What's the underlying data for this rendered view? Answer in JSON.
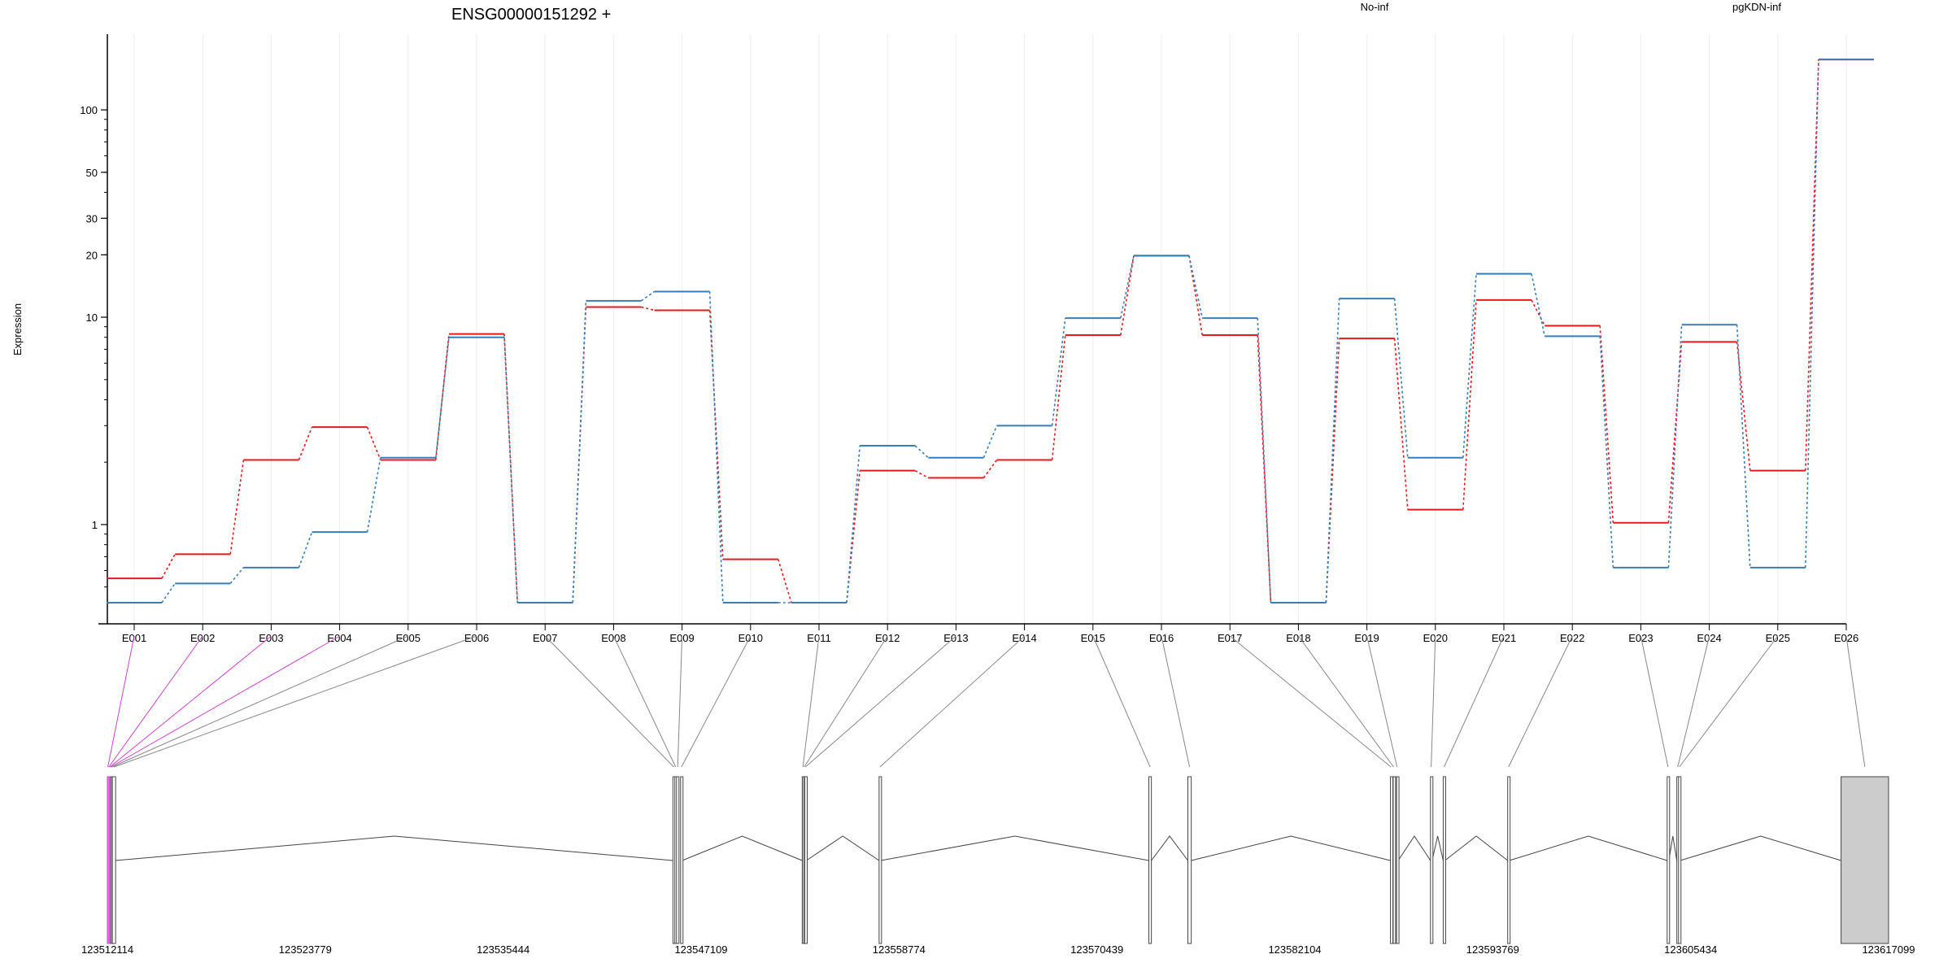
{
  "chart_data": {
    "type": "line",
    "title": "ENSG00000151292 +",
    "ylabel": "Expression",
    "xlabel": "",
    "yscale": "log",
    "yticks": [
      1,
      10,
      20,
      30,
      50,
      100
    ],
    "grid": "vertical-light",
    "legend_placement": "top-right",
    "categories": [
      "E001",
      "E002",
      "E003",
      "E004",
      "E005",
      "E006",
      "E007",
      "E008",
      "E009",
      "E010",
      "E011",
      "E012",
      "E013",
      "E014",
      "E015",
      "E016",
      "E017",
      "E018",
      "E019",
      "E020",
      "E021",
      "E022",
      "E023",
      "E024",
      "E025",
      "E026"
    ],
    "series": [
      {
        "name": "No-inf",
        "color": "#e41a1c",
        "style": "solid",
        "values": [
          0.55,
          0.72,
          2.05,
          2.95,
          2.05,
          8.3,
          0.42,
          11.2,
          10.8,
          0.68,
          0.42,
          1.82,
          1.68,
          2.05,
          8.2,
          19.8,
          8.2,
          0.42,
          7.9,
          1.18,
          12.1,
          9.1,
          1.02,
          7.6,
          1.82,
          175
        ]
      },
      {
        "name": "pgKDN-inf",
        "color": "#377eb8",
        "style": "dashed",
        "values": [
          0.42,
          0.52,
          0.62,
          0.92,
          2.1,
          8.0,
          0.42,
          12.0,
          13.3,
          0.42,
          0.42,
          2.4,
          2.1,
          3.0,
          9.9,
          19.8,
          9.9,
          0.42,
          12.3,
          2.1,
          16.2,
          8.1,
          0.62,
          9.2,
          0.62,
          175
        ]
      }
    ],
    "genomic_axis": {
      "tick_labels": [
        "123512114",
        "123523779",
        "123535444",
        "123547109",
        "123558774",
        "123570439",
        "123582104",
        "123593769",
        "123605434",
        "123617099"
      ],
      "tick_positions": [
        123512114,
        123523779,
        123535444,
        123547109,
        123558774,
        123570439,
        123582104,
        123593769,
        123605434,
        123617099
      ],
      "range": [
        123512114,
        123617099
      ]
    },
    "exons": [
      {
        "id": "E001",
        "start": 123512114,
        "end": 123512170,
        "highlight": true
      },
      {
        "id": "E002",
        "start": 123512170,
        "end": 123512230,
        "highlight": true
      },
      {
        "id": "E003",
        "start": 123512230,
        "end": 123512290,
        "highlight": true
      },
      {
        "id": "E004",
        "start": 123512290,
        "end": 123512340,
        "highlight": true
      },
      {
        "id": "E005",
        "start": 123512340,
        "end": 123512410,
        "highlight": false
      },
      {
        "id": "E006",
        "start": 123512410,
        "end": 123512600,
        "highlight": false
      },
      {
        "id": "E007",
        "start": 123545450,
        "end": 123545560,
        "highlight": false
      },
      {
        "id": "E008",
        "start": 123545560,
        "end": 123545660,
        "highlight": false
      },
      {
        "id": "E009",
        "start": 123545660,
        "end": 123545800,
        "highlight": false
      },
      {
        "id": "E010",
        "start": 123545900,
        "end": 123546000,
        "highlight": false
      },
      {
        "id": "E011",
        "start": 123553070,
        "end": 123553150,
        "highlight": false
      },
      {
        "id": "E012",
        "start": 123553150,
        "end": 123553220,
        "highlight": false
      },
      {
        "id": "E013",
        "start": 123553220,
        "end": 123553300,
        "highlight": false
      },
      {
        "id": "E014",
        "start": 123557600,
        "end": 123557700,
        "highlight": false
      },
      {
        "id": "E015",
        "start": 123573500,
        "end": 123573650,
        "highlight": false
      },
      {
        "id": "E016",
        "start": 123575800,
        "end": 123576000,
        "highlight": false
      },
      {
        "id": "E017",
        "start": 123587740,
        "end": 123587800,
        "highlight": false
      },
      {
        "id": "E018",
        "start": 123587900,
        "end": 123587950,
        "highlight": false
      },
      {
        "id": "E019",
        "start": 123588100,
        "end": 123588160,
        "highlight": false
      },
      {
        "id": "E020",
        "start": 123590100,
        "end": 123590180,
        "highlight": false
      },
      {
        "id": "E021",
        "start": 123590850,
        "end": 123590950,
        "highlight": false
      },
      {
        "id": "E022",
        "start": 123594650,
        "end": 123594750,
        "highlight": false
      },
      {
        "id": "E023",
        "start": 123604050,
        "end": 123604150,
        "highlight": false
      },
      {
        "id": "E024",
        "start": 123604620,
        "end": 123604720,
        "highlight": false
      },
      {
        "id": "E025",
        "start": 123604720,
        "end": 123604820,
        "highlight": false
      },
      {
        "id": "E026",
        "start": 123614300,
        "end": 123617099,
        "highlight": false
      }
    ],
    "colors": {
      "axis": "#000000",
      "grid": "#eeeeee",
      "connector": "#888888",
      "highlight": "#cc44cc",
      "exon_fill": "#cccccc",
      "intron": "#444444"
    }
  }
}
